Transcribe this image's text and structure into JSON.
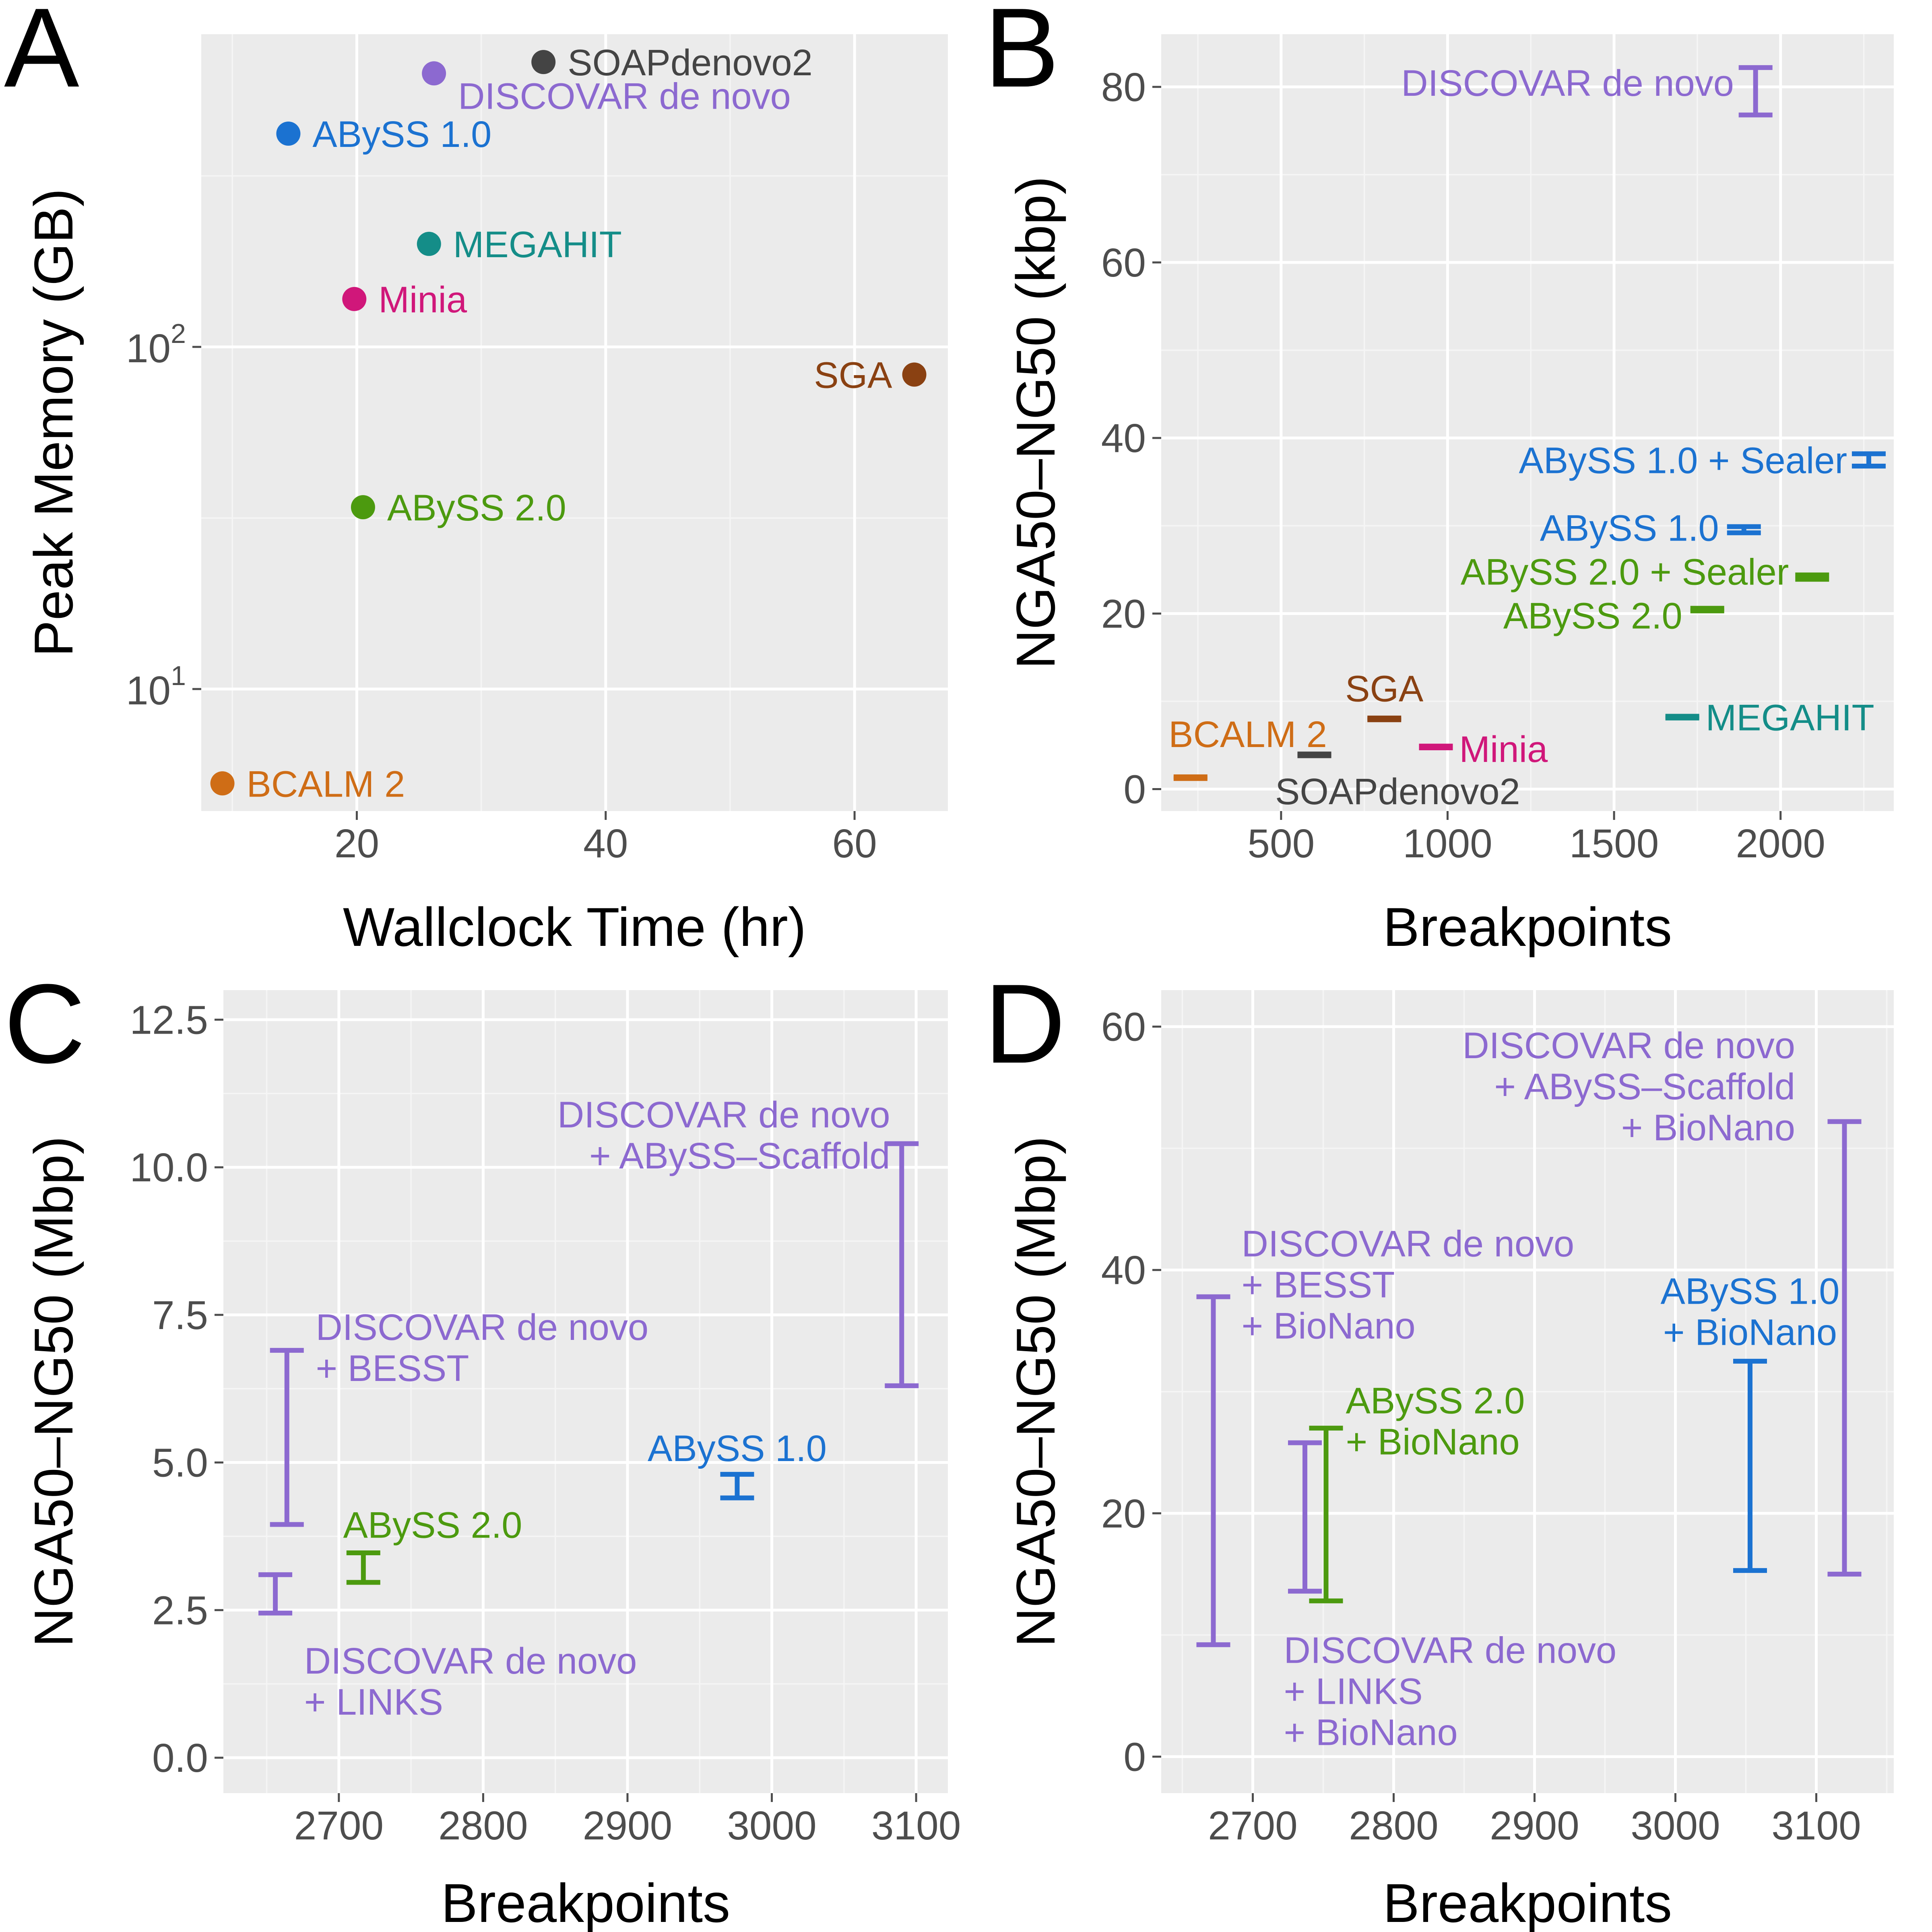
{
  "figure": {
    "panel_letters": [
      "A",
      "B",
      "C",
      "D"
    ]
  },
  "colors": {
    "SOAPdenovo2": "#444444",
    "DISCOVAR": "#8c69d0",
    "ABySS1": "#1b72d1",
    "ABySS2": "#4c9a0f",
    "MEGAHIT": "#148d88",
    "Minia": "#d0177a",
    "SGA": "#8a4112",
    "BCALM": "#cf6d16"
  },
  "chart_data": [
    {
      "panel": "A",
      "type": "scatter",
      "xlabel": "Wallclock Time (hr)",
      "ylabel": "Peak Memory (GB)",
      "xlim": [
        7.5,
        67.5
      ],
      "ylim": [
        4.4,
        820
      ],
      "y_scale": "log",
      "x_ticks": [
        20,
        40,
        60
      ],
      "x_tick_labels": [
        "20",
        "40",
        "60"
      ],
      "y_ticks": [
        10,
        100
      ],
      "y_tick_labels": [
        {
          "base": "10",
          "exp": "1"
        },
        {
          "base": "10",
          "exp": "2"
        }
      ],
      "y_minor_ticks": [
        31.6,
        316
      ],
      "points": [
        {
          "label": "SOAPdenovo2",
          "x": 35.0,
          "y": 680,
          "color_key": "SOAPdenovo2",
          "label_side": "right",
          "label_dy": 0
        },
        {
          "label": "DISCOVAR de novo",
          "x": 26.2,
          "y": 630,
          "color_key": "DISCOVAR",
          "label_side": "right",
          "label_dy": 55
        },
        {
          "label": "ABySS 1.0",
          "x": 14.5,
          "y": 420,
          "color_key": "ABySS1",
          "label_side": "right",
          "label_dy": 0
        },
        {
          "label": "MEGAHIT",
          "x": 25.8,
          "y": 200,
          "color_key": "MEGAHIT",
          "label_side": "right",
          "label_dy": 0
        },
        {
          "label": "Minia",
          "x": 19.8,
          "y": 138,
          "color_key": "Minia",
          "label_side": "right",
          "label_dy": 0
        },
        {
          "label": "SGA",
          "x": 64.8,
          "y": 83,
          "color_key": "SGA",
          "label_side": "left",
          "label_dy": 0
        },
        {
          "label": "ABySS 2.0",
          "x": 20.5,
          "y": 34,
          "color_key": "ABySS2",
          "label_side": "right",
          "label_dy": 0
        },
        {
          "label": "BCALM 2",
          "x": 9.2,
          "y": 5.3,
          "color_key": "BCALM",
          "label_side": "right",
          "label_dy": 0
        }
      ]
    },
    {
      "panel": "B",
      "type": "errorbar",
      "xlabel": "Breakpoints",
      "ylabel": "NGA50–NG50 (kbp)",
      "xlim": [
        140,
        2340
      ],
      "ylim": [
        -2.5,
        86
      ],
      "x_ticks": [
        500,
        1000,
        1500,
        2000
      ],
      "x_tick_labels": [
        "500",
        "1000",
        "1500",
        "2000"
      ],
      "y_ticks": [
        0,
        20,
        40,
        60,
        80
      ],
      "y_tick_labels": [
        "0",
        "20",
        "40",
        "60",
        "80"
      ],
      "intervals": [
        {
          "label": [
            "DISCOVAR de novo"
          ],
          "x": 1925,
          "low": 76.8,
          "high": 82.2,
          "color_key": "DISCOVAR",
          "label_x": 1860,
          "label_y": 80.5,
          "anchor": "end"
        },
        {
          "label": [
            "ABySS 1.0 + Sealer"
          ],
          "x": 2265,
          "low": 36.8,
          "high": 38.2,
          "color_key": "ABySS1",
          "label_x": 2200,
          "label_y": 37.5,
          "anchor": "end"
        },
        {
          "label": [
            "ABySS 1.0"
          ],
          "x": 1890,
          "low": 29.2,
          "high": 29.9,
          "color_key": "ABySS1",
          "label_x": 1815,
          "label_y": 29.8,
          "anchor": "end"
        },
        {
          "label": [
            "ABySS 2.0 + Sealer"
          ],
          "x": 2095,
          "low": 23.9,
          "high": 24.4,
          "color_key": "ABySS2",
          "label_x": 2025,
          "label_y": 24.8,
          "anchor": "end"
        },
        {
          "label": [
            "ABySS 2.0"
          ],
          "x": 1780,
          "low": 20.3,
          "high": 20.6,
          "color_key": "ABySS2",
          "label_x": 1705,
          "label_y": 19.8,
          "anchor": "end"
        },
        {
          "label": [
            "MEGAHIT"
          ],
          "x": 1705,
          "low": 8.1,
          "high": 8.3,
          "color_key": "MEGAHIT",
          "label_x": 1775,
          "label_y": 8.2,
          "anchor": "start"
        },
        {
          "label": [
            "SGA"
          ],
          "x": 810,
          "low": 7.9,
          "high": 8.1,
          "color_key": "SGA",
          "label_x": 810,
          "label_y": 11.5,
          "anchor": "middle"
        },
        {
          "label": [
            "Minia"
          ],
          "x": 965,
          "low": 4.7,
          "high": 4.9,
          "color_key": "Minia",
          "label_x": 1035,
          "label_y": 4.6,
          "anchor": "start"
        },
        {
          "label": [
            "SOAPdenovo2"
          ],
          "x": 600,
          "low": 3.8,
          "high": 4.0,
          "color_key": "SOAPdenovo2",
          "label_x": 850,
          "label_y": -0.2,
          "anchor": "middle"
        },
        {
          "label": [
            "BCALM 2"
          ],
          "x": 228,
          "low": 1.2,
          "high": 1.4,
          "color_key": "BCALM",
          "label_x": 400,
          "label_y": 6.3,
          "anchor": "middle"
        }
      ]
    },
    {
      "panel": "C",
      "type": "errorbar",
      "xlabel": "Breakpoints",
      "ylabel": "NGA50–NG50 (Mbp)",
      "xlim": [
        2620,
        3122
      ],
      "ylim": [
        -0.6,
        13.0
      ],
      "x_ticks": [
        2700,
        2800,
        2900,
        3000,
        3100
      ],
      "x_tick_labels": [
        "2700",
        "2800",
        "2900",
        "3000",
        "3100"
      ],
      "y_ticks": [
        0.0,
        2.5,
        5.0,
        7.5,
        10.0,
        12.5
      ],
      "y_tick_labels": [
        "0.0",
        "2.5",
        "5.0",
        "7.5",
        "10.0",
        "12.5"
      ],
      "intervals": [
        {
          "label": [
            "DISCOVAR de novo",
            "+ ABySS–Scaffold"
          ],
          "x": 3090,
          "low": 6.3,
          "high": 10.4,
          "color_key": "DISCOVAR",
          "label_x": 3082,
          "label_y": 10.9,
          "anchor": "end"
        },
        {
          "label": [
            "DISCOVAR de novo",
            "+ BESST"
          ],
          "x": 2664,
          "low": 3.95,
          "high": 6.9,
          "color_key": "DISCOVAR",
          "label_x": 2684,
          "label_y": 7.3,
          "anchor": "start"
        },
        {
          "label": [
            "ABySS 1.0"
          ],
          "x": 2976,
          "low": 4.4,
          "high": 4.8,
          "color_key": "ABySS1",
          "label_x": 2976,
          "label_y": 5.25,
          "anchor": "middle"
        },
        {
          "label": [
            "ABySS 2.0"
          ],
          "x": 2717,
          "low": 2.97,
          "high": 3.47,
          "color_key": "ABySS2",
          "label_x": 2765,
          "label_y": 3.95,
          "anchor": "middle"
        },
        {
          "label": [
            "DISCOVAR de novo",
            "+ LINKS"
          ],
          "x": 2656,
          "low": 2.45,
          "high": 3.1,
          "color_key": "DISCOVAR",
          "label_x": 2676,
          "label_y": 1.65,
          "anchor": "start"
        }
      ]
    },
    {
      "panel": "D",
      "type": "errorbar",
      "xlabel": "Breakpoints",
      "ylabel": "NGA50–NG50 (Mbp)",
      "xlim": [
        2635,
        3155
      ],
      "ylim": [
        -3.0,
        63.0
      ],
      "x_ticks": [
        2700,
        2800,
        2900,
        3000,
        3100
      ],
      "x_tick_labels": [
        "2700",
        "2800",
        "2900",
        "3000",
        "3100"
      ],
      "y_ticks": [
        0,
        20,
        40,
        60
      ],
      "y_tick_labels": [
        "0",
        "20",
        "40",
        "60"
      ],
      "intervals": [
        {
          "label": [
            "DISCOVAR de novo",
            "+ ABySS–Scaffold",
            "+ BioNano"
          ],
          "x": 3120,
          "low": 15.0,
          "high": 52.2,
          "color_key": "DISCOVAR",
          "label_x": 3085,
          "label_y": 58.5,
          "anchor": "end"
        },
        {
          "label": [
            "DISCOVAR de novo",
            "+ BESST",
            "+ BioNano"
          ],
          "x": 2672,
          "low": 9.2,
          "high": 37.8,
          "color_key": "DISCOVAR",
          "label_x": 2692,
          "label_y": 42.2,
          "anchor": "start"
        },
        {
          "label": [
            "ABySS 1.0",
            "+ BioNano"
          ],
          "x": 3053,
          "low": 15.3,
          "high": 32.5,
          "color_key": "ABySS1",
          "label_x": 3053,
          "label_y": 38.3,
          "anchor": "middle"
        },
        {
          "label": [
            "ABySS 2.0",
            "+ BioNano"
          ],
          "x": 2752,
          "low": 12.8,
          "high": 27.0,
          "color_key": "ABySS2",
          "label_x": 2766,
          "label_y": 29.3,
          "anchor": "start"
        },
        {
          "label": [
            "DISCOVAR de novo",
            "+ LINKS",
            "+ BioNano"
          ],
          "x": 2737,
          "low": 13.6,
          "high": 25.8,
          "color_key": "DISCOVAR",
          "label_x": 2722,
          "label_y": 8.8,
          "anchor": "start"
        }
      ]
    }
  ]
}
